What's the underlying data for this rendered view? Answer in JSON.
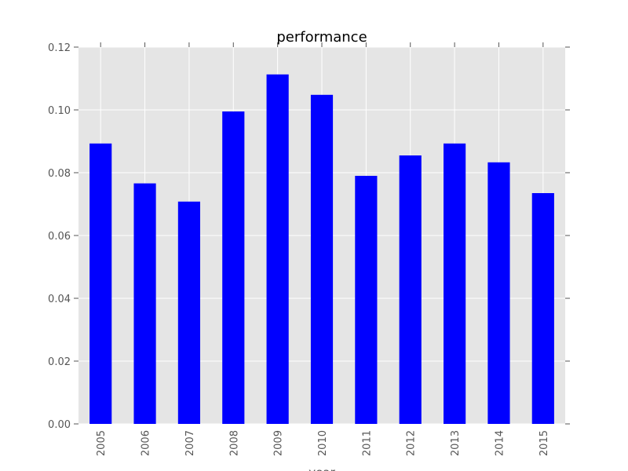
{
  "chart_data": {
    "type": "bar",
    "title": "performance",
    "xlabel": "year",
    "ylabel": "",
    "categories": [
      "2005",
      "2006",
      "2007",
      "2008",
      "2009",
      "2010",
      "2011",
      "2012",
      "2013",
      "2014",
      "2015"
    ],
    "values": [
      0.0893,
      0.0766,
      0.0708,
      0.0995,
      0.1113,
      0.1048,
      0.079,
      0.0855,
      0.0893,
      0.0833,
      0.0735
    ],
    "ylim": [
      0,
      0.12
    ],
    "yticks": [
      "0.00",
      "0.02",
      "0.04",
      "0.06",
      "0.08",
      "0.10",
      "0.12"
    ],
    "grid": true,
    "legend": "none",
    "colors": {
      "bar": "#0000ff",
      "plot_background": "#e5e5e5",
      "grid": "#ffffff",
      "text": "#555555"
    }
  }
}
